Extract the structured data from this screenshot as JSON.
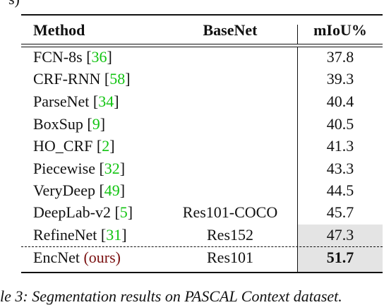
{
  "fragments": {
    "top": "s)",
    "bottom": "le 3: Segmentation results on PASCAL Context dataset."
  },
  "table": {
    "headers": {
      "method": "Method",
      "basenet": "BaseNet",
      "miou": "mIoU%"
    },
    "rows": [
      {
        "name": "FCN-8s",
        "ref": "36",
        "basenet": "",
        "miou": "37.8"
      },
      {
        "name": "CRF-RNN",
        "ref": "58",
        "basenet": "",
        "miou": "39.3"
      },
      {
        "name": "ParseNet",
        "ref": "34",
        "basenet": "",
        "miou": "40.4"
      },
      {
        "name": "BoxSup",
        "ref": "9",
        "basenet": "",
        "miou": "40.5"
      },
      {
        "name": "HO_CRF",
        "ref": "2",
        "basenet": "",
        "miou": "41.3"
      },
      {
        "name": "Piecewise",
        "ref": "32",
        "basenet": "",
        "miou": "43.3"
      },
      {
        "name": "VeryDeep",
        "ref": "49",
        "basenet": "",
        "miou": "44.5"
      },
      {
        "name": "DeepLab-v2",
        "ref": "5",
        "basenet": "Res101-COCO",
        "miou": "45.7"
      },
      {
        "name": "RefineNet",
        "ref": "31",
        "basenet": "Res152",
        "miou": "47.3"
      }
    ],
    "final_row": {
      "name": "EncNet",
      "note": "(ours)",
      "basenet": "Res101",
      "miou": "51.7"
    },
    "highlight_color": "#e4e4e4",
    "ref_color": "#11c411",
    "ours_color": "#7a1010"
  }
}
